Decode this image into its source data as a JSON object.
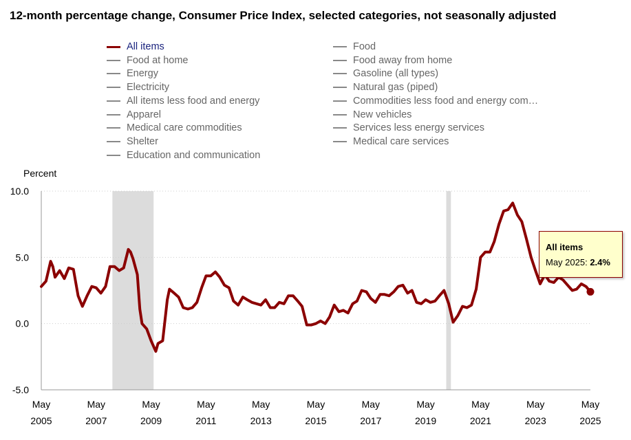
{
  "page_title": "12-month percentage change, Consumer Price Index, selected categories, not seasonally adjusted",
  "legend": {
    "items": [
      {
        "label": "All items",
        "active": true
      },
      {
        "label": "Food at home",
        "active": false
      },
      {
        "label": "Energy",
        "active": false
      },
      {
        "label": "Electricity",
        "active": false
      },
      {
        "label": "All items less food and energy",
        "active": false
      },
      {
        "label": "Apparel",
        "active": false
      },
      {
        "label": "Medical care commodities",
        "active": false
      },
      {
        "label": "Shelter",
        "active": false
      },
      {
        "label": "Education and communication",
        "active": false
      },
      {
        "label": "Food",
        "active": false
      },
      {
        "label": "Food away from home",
        "active": false
      },
      {
        "label": "Gasoline (all types)",
        "active": false
      },
      {
        "label": "Natural gas (piped)",
        "active": false
      },
      {
        "label": "Commodities less food and energy com…",
        "active": false
      },
      {
        "label": "New vehicles",
        "active": false
      },
      {
        "label": "Services less energy services",
        "active": false
      },
      {
        "label": "Medical care services",
        "active": false
      }
    ]
  },
  "tooltip": {
    "title": "All items",
    "date_label": "May 2025: ",
    "value_label": "2.4%"
  },
  "colors": {
    "series": "#8b0000",
    "recession": "#dcdcdc",
    "grid": "#cccccc",
    "legend_active_text": "#1a237e"
  },
  "chart_data": {
    "type": "line",
    "ylabel": "Percent",
    "ylim": [
      -5,
      10
    ],
    "y_ticks": [
      "10.0",
      "5.0",
      "0.0",
      "-5.0"
    ],
    "y_tick_values": [
      10,
      5,
      0,
      -5
    ],
    "x_ticks": [
      {
        "month": "May",
        "year": "2005",
        "x": 2005.33
      },
      {
        "month": "May",
        "year": "2007",
        "x": 2007.33
      },
      {
        "month": "May",
        "year": "2009",
        "x": 2009.33
      },
      {
        "month": "May",
        "year": "2011",
        "x": 2011.33
      },
      {
        "month": "May",
        "year": "2013",
        "x": 2013.33
      },
      {
        "month": "May",
        "year": "2015",
        "x": 2015.33
      },
      {
        "month": "May",
        "year": "2017",
        "x": 2017.33
      },
      {
        "month": "May",
        "year": "2019",
        "x": 2019.33
      },
      {
        "month": "May",
        "year": "2021",
        "x": 2021.33
      },
      {
        "month": "May",
        "year": "2023",
        "x": 2023.33
      },
      {
        "month": "May",
        "year": "2025",
        "x": 2025.33
      }
    ],
    "grid": true,
    "recessions": [
      [
        2007.92,
        2009.42
      ],
      [
        2020.08,
        2020.25
      ]
    ],
    "series": [
      {
        "name": "All items",
        "x": [
          2005.33,
          2005.5,
          2005.67,
          2005.75,
          2005.83,
          2006.0,
          2006.17,
          2006.33,
          2006.5,
          2006.67,
          2006.83,
          2007.0,
          2007.17,
          2007.33,
          2007.5,
          2007.67,
          2007.83,
          2008.0,
          2008.17,
          2008.33,
          2008.5,
          2008.58,
          2008.67,
          2008.83,
          2008.92,
          2009.0,
          2009.17,
          2009.33,
          2009.5,
          2009.58,
          2009.75,
          2009.92,
          2010.0,
          2010.17,
          2010.33,
          2010.5,
          2010.67,
          2010.83,
          2011.0,
          2011.17,
          2011.33,
          2011.5,
          2011.67,
          2011.83,
          2012.0,
          2012.17,
          2012.33,
          2012.5,
          2012.67,
          2012.83,
          2013.0,
          2013.17,
          2013.33,
          2013.5,
          2013.67,
          2013.83,
          2014.0,
          2014.17,
          2014.33,
          2014.5,
          2014.67,
          2014.83,
          2015.0,
          2015.17,
          2015.33,
          2015.5,
          2015.67,
          2015.83,
          2016.0,
          2016.17,
          2016.33,
          2016.5,
          2016.67,
          2016.83,
          2017.0,
          2017.17,
          2017.33,
          2017.5,
          2017.67,
          2017.83,
          2018.0,
          2018.17,
          2018.33,
          2018.5,
          2018.67,
          2018.83,
          2019.0,
          2019.17,
          2019.33,
          2019.5,
          2019.67,
          2019.83,
          2020.0,
          2020.17,
          2020.33,
          2020.5,
          2020.67,
          2020.83,
          2021.0,
          2021.17,
          2021.33,
          2021.5,
          2021.67,
          2021.83,
          2022.0,
          2022.17,
          2022.33,
          2022.5,
          2022.67,
          2022.83,
          2023.0,
          2023.17,
          2023.33,
          2023.5,
          2023.67,
          2023.83,
          2024.0,
          2024.17,
          2024.33,
          2024.5,
          2024.67,
          2024.83,
          2025.0,
          2025.17,
          2025.33
        ],
        "values": [
          2.8,
          3.2,
          4.7,
          4.3,
          3.5,
          4.0,
          3.4,
          4.2,
          4.1,
          2.1,
          1.3,
          2.1,
          2.8,
          2.7,
          2.3,
          2.8,
          4.3,
          4.3,
          4.0,
          4.2,
          5.6,
          5.4,
          4.9,
          3.7,
          1.1,
          0.0,
          -0.4,
          -1.3,
          -2.1,
          -1.5,
          -1.3,
          1.8,
          2.6,
          2.3,
          2.0,
          1.2,
          1.1,
          1.2,
          1.6,
          2.7,
          3.6,
          3.6,
          3.9,
          3.5,
          2.9,
          2.7,
          1.7,
          1.4,
          2.0,
          1.8,
          1.6,
          1.5,
          1.4,
          1.8,
          1.2,
          1.2,
          1.6,
          1.5,
          2.1,
          2.1,
          1.7,
          1.3,
          -0.1,
          -0.1,
          0.0,
          0.2,
          0.0,
          0.5,
          1.4,
          0.9,
          1.0,
          0.8,
          1.5,
          1.7,
          2.5,
          2.4,
          1.9,
          1.6,
          2.2,
          2.2,
          2.1,
          2.4,
          2.8,
          2.9,
          2.3,
          2.5,
          1.6,
          1.5,
          1.8,
          1.6,
          1.7,
          2.1,
          2.5,
          1.5,
          0.1,
          0.6,
          1.3,
          1.2,
          1.4,
          2.6,
          5.0,
          5.4,
          5.4,
          6.2,
          7.5,
          8.5,
          8.6,
          9.1,
          8.2,
          7.7,
          6.4,
          5.0,
          4.0,
          3.0,
          3.7,
          3.2,
          3.1,
          3.5,
          3.3,
          2.9,
          2.5,
          2.6,
          3.0,
          2.8,
          2.4
        ]
      }
    ],
    "highlight": {
      "x": 2025.33,
      "y": 2.4
    }
  }
}
